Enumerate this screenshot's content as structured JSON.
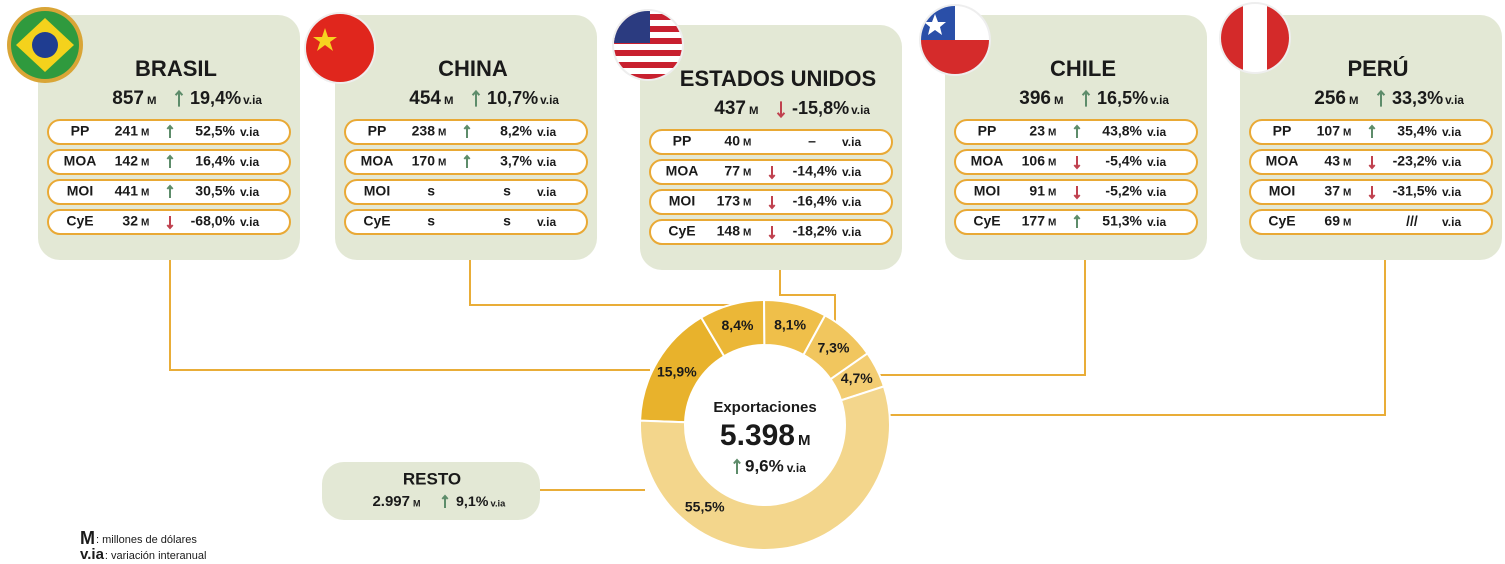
{
  "countries": [
    {
      "name": "BRASIL",
      "total": "857",
      "unit": "M",
      "change": "19,4%",
      "trend": "up",
      "suffix": "v.ia",
      "rows": [
        {
          "sector": "PP",
          "value": "241",
          "unit": "M",
          "change": "52,5%",
          "trend": "up",
          "suffix": "v.ia"
        },
        {
          "sector": "MOA",
          "value": "142",
          "unit": "M",
          "change": "16,4%",
          "trend": "up",
          "suffix": "v.ia"
        },
        {
          "sector": "MOI",
          "value": "441",
          "unit": "M",
          "change": "30,5%",
          "trend": "up",
          "suffix": "v.ia"
        },
        {
          "sector": "CyE",
          "value": "32",
          "unit": "M",
          "change": "-68,0%",
          "trend": "down",
          "suffix": "v.ia"
        }
      ]
    },
    {
      "name": "CHINA",
      "total": "454",
      "unit": "M",
      "change": "10,7%",
      "trend": "up",
      "suffix": "v.ia",
      "rows": [
        {
          "sector": "PP",
          "value": "238",
          "unit": "M",
          "change": "8,2%",
          "trend": "up",
          "suffix": "v.ia"
        },
        {
          "sector": "MOA",
          "value": "170",
          "unit": "M",
          "change": "3,7%",
          "trend": "up",
          "suffix": "v.ia"
        },
        {
          "sector": "MOI",
          "value": "s",
          "change": "s",
          "suffix": "v.ia"
        },
        {
          "sector": "CyE",
          "value": "s",
          "change": "s",
          "suffix": "v.ia"
        }
      ]
    },
    {
      "name": "ESTADOS UNIDOS",
      "total": "437",
      "unit": "M",
      "change": "-15,8%",
      "trend": "down",
      "suffix": "v.ia",
      "rows": [
        {
          "sector": "PP",
          "value": "40",
          "unit": "M",
          "change": "–",
          "suffix": "v.ia"
        },
        {
          "sector": "MOA",
          "value": "77",
          "unit": "M",
          "change": "-14,4%",
          "trend": "down",
          "suffix": "v.ia"
        },
        {
          "sector": "MOI",
          "value": "173",
          "unit": "M",
          "change": "-16,4%",
          "trend": "down",
          "suffix": "v.ia"
        },
        {
          "sector": "CyE",
          "value": "148",
          "unit": "M",
          "change": "-18,2%",
          "trend": "down",
          "suffix": "v.ia"
        }
      ]
    },
    {
      "name": "CHILE",
      "total": "396",
      "unit": "M",
      "change": "16,5%",
      "trend": "up",
      "suffix": "v.ia",
      "rows": [
        {
          "sector": "PP",
          "value": "23",
          "unit": "M",
          "change": "43,8%",
          "trend": "up",
          "suffix": "v.ia"
        },
        {
          "sector": "MOA",
          "value": "106",
          "unit": "M",
          "change": "-5,4%",
          "trend": "down",
          "suffix": "v.ia"
        },
        {
          "sector": "MOI",
          "value": "91",
          "unit": "M",
          "change": "-5,2%",
          "trend": "down",
          "suffix": "v.ia"
        },
        {
          "sector": "CyE",
          "value": "177",
          "unit": "M",
          "change": "51,3%",
          "trend": "up",
          "suffix": "v.ia"
        }
      ]
    },
    {
      "name": "PERÚ",
      "total": "256",
      "unit": "M",
      "change": "33,3%",
      "trend": "up",
      "suffix": "v.ia",
      "rows": [
        {
          "sector": "PP",
          "value": "107",
          "unit": "M",
          "change": "35,4%",
          "trend": "up",
          "suffix": "v.ia"
        },
        {
          "sector": "MOA",
          "value": "43",
          "unit": "M",
          "change": "-23,2%",
          "trend": "down",
          "suffix": "v.ia"
        },
        {
          "sector": "MOI",
          "value": "37",
          "unit": "M",
          "change": "-31,5%",
          "trend": "down",
          "suffix": "v.ia"
        },
        {
          "sector": "CyE",
          "value": "69",
          "unit": "M",
          "change": "///",
          "suffix": "v.ia"
        }
      ]
    }
  ],
  "resto": {
    "name": "RESTO",
    "total": "2.997",
    "unit": "M",
    "change": "9,1%",
    "trend": "up",
    "suffix": "v.ia"
  },
  "chart_data": {
    "type": "pie",
    "donut": true,
    "values": [
      15.9,
      8.4,
      8.1,
      7.3,
      4.7,
      55.5
    ],
    "value_labels": [
      "15,9%",
      "8,4%",
      "8,1%",
      "7,3%",
      "4,7%",
      "55,5%"
    ],
    "colors": [
      "#e8b22c",
      "#ebb737",
      "#efbf4a",
      "#f1c65e",
      "#f3cd72",
      "#f3d68c"
    ],
    "center": {
      "title": "Exportaciones",
      "value": "5.398",
      "unit": "M",
      "change": "9,6%",
      "trend": "up",
      "suffix": "v.ia"
    }
  },
  "legend": [
    {
      "key": "M",
      "text": ": millones de dólares"
    },
    {
      "key": "v.ia",
      "text": ": variación interanual"
    }
  ]
}
